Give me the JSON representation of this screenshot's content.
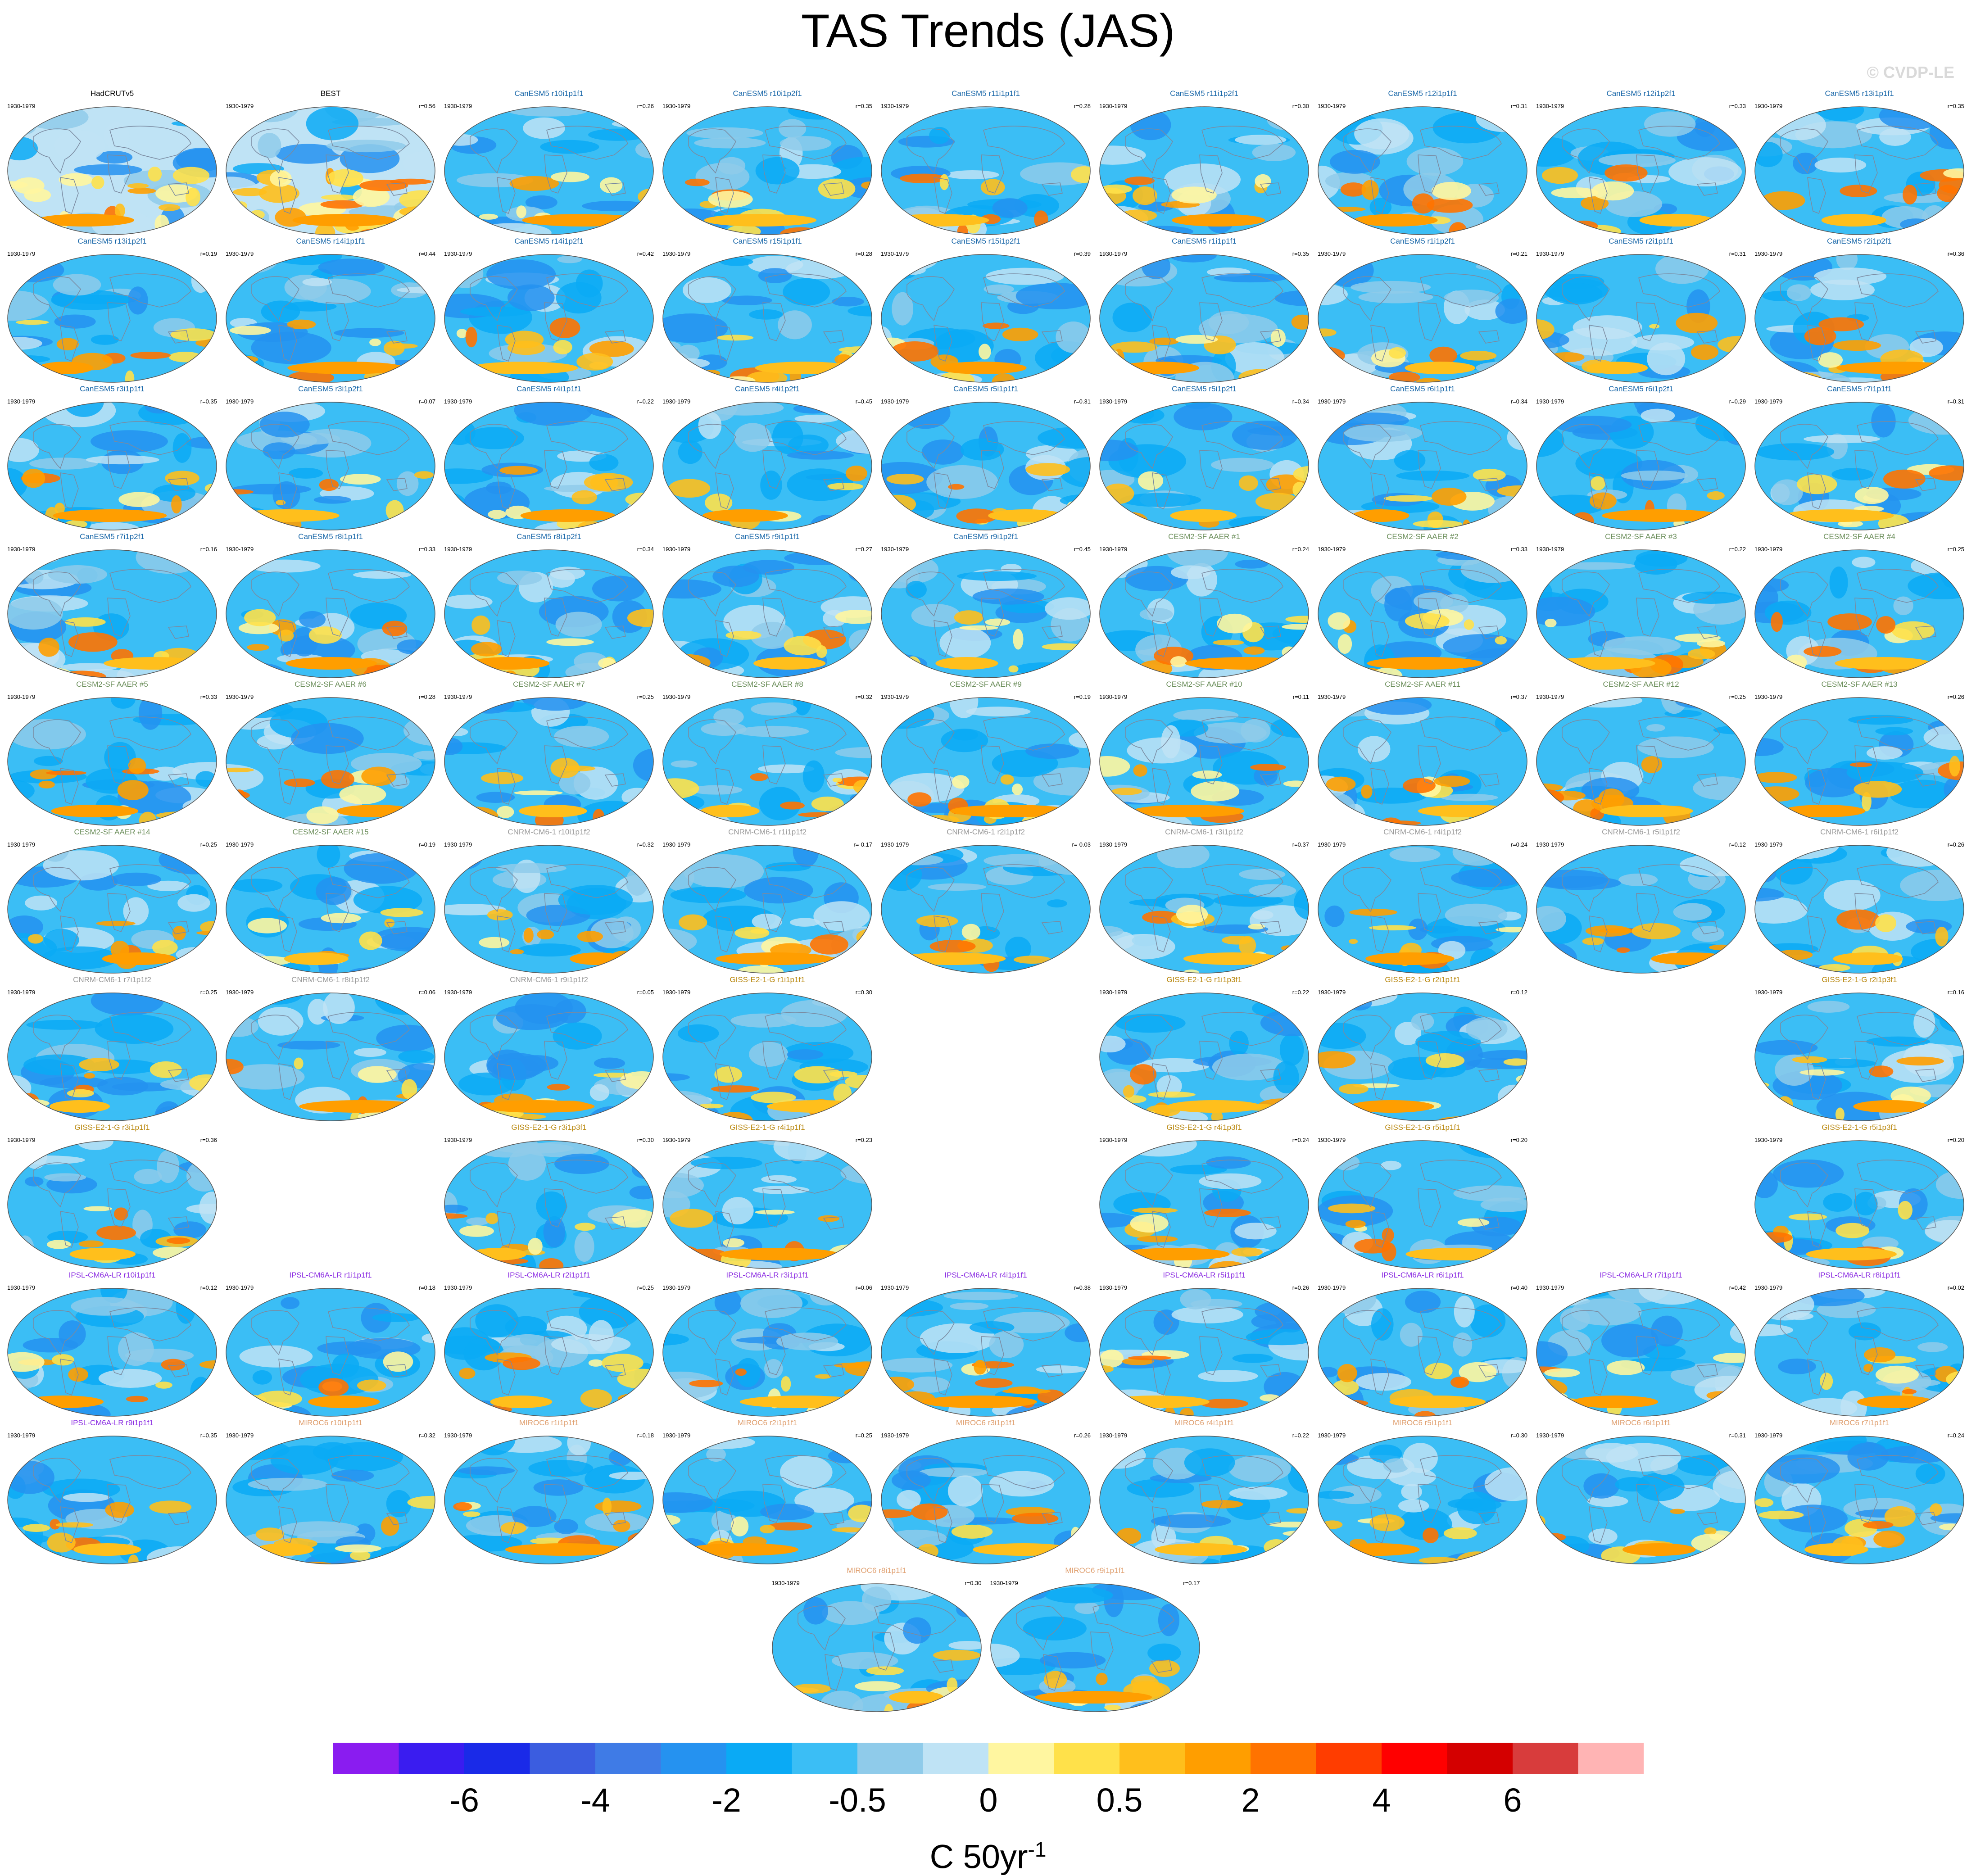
{
  "title": "TAS Trends (JAS)",
  "copyright": "© CVDP-LE",
  "units": {
    "main": "C 50yr",
    "exponent": "-1"
  },
  "colorbar": {
    "colors": [
      "#8a1cf0",
      "#3a1cf0",
      "#1a2ae8",
      "#3b5de0",
      "#3f7be6",
      "#2592f0",
      "#0aaaf5",
      "#3bbef5",
      "#8fcbea",
      "#bfe3f5",
      "#fff6a0",
      "#ffe14a",
      "#ffbf1c",
      "#ff9e00",
      "#ff7300",
      "#ff3d00",
      "#ff0000",
      "#d40000",
      "#d83c3c",
      "#ffb4b4"
    ],
    "tick_labels": [
      "-6",
      "-4",
      "-2",
      "-0.5",
      "0",
      "0.5",
      "2",
      "4",
      "6"
    ]
  },
  "model_colors": {
    "obs": "#000000",
    "CanESM5": "#1766a8",
    "CESM2": "#6b8e5a",
    "CNRM": "#9a9a9a",
    "GISS": "#b8860b",
    "IPSL": "#8a2be2",
    "MIROC6": "#e0a070"
  },
  "panels": [
    {
      "name": "HadCRUTv5",
      "period": "1930-1979",
      "corr": "",
      "group": "obs",
      "row": 0,
      "col": 0
    },
    {
      "name": "BEST",
      "period": "1930-1979",
      "corr": "r=0.56",
      "group": "obs",
      "row": 0,
      "col": 1
    },
    {
      "name": "CanESM5 r10i1p1f1",
      "period": "1930-1979",
      "corr": "r=0.26",
      "group": "CanESM5",
      "row": 0,
      "col": 2
    },
    {
      "name": "CanESM5 r10i1p2f1",
      "period": "1930-1979",
      "corr": "r=0.35",
      "group": "CanESM5",
      "row": 0,
      "col": 3
    },
    {
      "name": "CanESM5 r11i1p1f1",
      "period": "1930-1979",
      "corr": "r=0.28",
      "group": "CanESM5",
      "row": 0,
      "col": 4
    },
    {
      "name": "CanESM5 r11i1p2f1",
      "period": "1930-1979",
      "corr": "r=0.30",
      "group": "CanESM5",
      "row": 0,
      "col": 5
    },
    {
      "name": "CanESM5 r12i1p1f1",
      "period": "1930-1979",
      "corr": "r=0.31",
      "group": "CanESM5",
      "row": 0,
      "col": 6
    },
    {
      "name": "CanESM5 r12i1p2f1",
      "period": "1930-1979",
      "corr": "r=0.33",
      "group": "CanESM5",
      "row": 0,
      "col": 7
    },
    {
      "name": "CanESM5 r13i1p1f1",
      "period": "1930-1979",
      "corr": "r=0.35",
      "group": "CanESM5",
      "row": 0,
      "col": 8
    },
    {
      "name": "CanESM5 r13i1p2f1",
      "period": "1930-1979",
      "corr": "r=0.19",
      "group": "CanESM5",
      "row": 1,
      "col": 0
    },
    {
      "name": "CanESM5 r14i1p1f1",
      "period": "1930-1979",
      "corr": "r=0.44",
      "group": "CanESM5",
      "row": 1,
      "col": 1
    },
    {
      "name": "CanESM5 r14i1p2f1",
      "period": "1930-1979",
      "corr": "r=0.42",
      "group": "CanESM5",
      "row": 1,
      "col": 2
    },
    {
      "name": "CanESM5 r15i1p1f1",
      "period": "1930-1979",
      "corr": "r=0.28",
      "group": "CanESM5",
      "row": 1,
      "col": 3
    },
    {
      "name": "CanESM5 r15i1p2f1",
      "period": "1930-1979",
      "corr": "r=0.39",
      "group": "CanESM5",
      "row": 1,
      "col": 4
    },
    {
      "name": "CanESM5 r1i1p1f1",
      "period": "1930-1979",
      "corr": "r=0.35",
      "group": "CanESM5",
      "row": 1,
      "col": 5
    },
    {
      "name": "CanESM5 r1i1p2f1",
      "period": "1930-1979",
      "corr": "r=0.21",
      "group": "CanESM5",
      "row": 1,
      "col": 6
    },
    {
      "name": "CanESM5 r2i1p1f1",
      "period": "1930-1979",
      "corr": "r=0.31",
      "group": "CanESM5",
      "row": 1,
      "col": 7
    },
    {
      "name": "CanESM5 r2i1p2f1",
      "period": "1930-1979",
      "corr": "r=0.36",
      "group": "CanESM5",
      "row": 1,
      "col": 8
    },
    {
      "name": "CanESM5 r3i1p1f1",
      "period": "1930-1979",
      "corr": "r=0.35",
      "group": "CanESM5",
      "row": 2,
      "col": 0
    },
    {
      "name": "CanESM5 r3i1p2f1",
      "period": "1930-1979",
      "corr": "r=0.07",
      "group": "CanESM5",
      "row": 2,
      "col": 1
    },
    {
      "name": "CanESM5 r4i1p1f1",
      "period": "1930-1979",
      "corr": "r=0.22",
      "group": "CanESM5",
      "row": 2,
      "col": 2
    },
    {
      "name": "CanESM5 r4i1p2f1",
      "period": "1930-1979",
      "corr": "r=0.45",
      "group": "CanESM5",
      "row": 2,
      "col": 3
    },
    {
      "name": "CanESM5 r5i1p1f1",
      "period": "1930-1979",
      "corr": "r=0.31",
      "group": "CanESM5",
      "row": 2,
      "col": 4
    },
    {
      "name": "CanESM5 r5i1p2f1",
      "period": "1930-1979",
      "corr": "r=0.34",
      "group": "CanESM5",
      "row": 2,
      "col": 5
    },
    {
      "name": "CanESM5 r6i1p1f1",
      "period": "1930-1979",
      "corr": "r=0.34",
      "group": "CanESM5",
      "row": 2,
      "col": 6
    },
    {
      "name": "CanESM5 r6i1p2f1",
      "period": "1930-1979",
      "corr": "r=0.29",
      "group": "CanESM5",
      "row": 2,
      "col": 7
    },
    {
      "name": "CanESM5 r7i1p1f1",
      "period": "1930-1979",
      "corr": "r=0.31",
      "group": "CanESM5",
      "row": 2,
      "col": 8
    },
    {
      "name": "CanESM5 r7i1p2f1",
      "period": "1930-1979",
      "corr": "r=0.16",
      "group": "CanESM5",
      "row": 3,
      "col": 0
    },
    {
      "name": "CanESM5 r8i1p1f1",
      "period": "1930-1979",
      "corr": "r=0.33",
      "group": "CanESM5",
      "row": 3,
      "col": 1
    },
    {
      "name": "CanESM5 r8i1p2f1",
      "period": "1930-1979",
      "corr": "r=0.34",
      "group": "CanESM5",
      "row": 3,
      "col": 2
    },
    {
      "name": "CanESM5 r9i1p1f1",
      "period": "1930-1979",
      "corr": "r=0.27",
      "group": "CanESM5",
      "row": 3,
      "col": 3
    },
    {
      "name": "CanESM5 r9i1p2f1",
      "period": "1930-1979",
      "corr": "r=0.45",
      "group": "CanESM5",
      "row": 3,
      "col": 4
    },
    {
      "name": "CESM2-SF AAER #1",
      "period": "1930-1979",
      "corr": "r=0.24",
      "group": "CESM2",
      "row": 3,
      "col": 5
    },
    {
      "name": "CESM2-SF AAER #2",
      "period": "1930-1979",
      "corr": "r=0.33",
      "group": "CESM2",
      "row": 3,
      "col": 6
    },
    {
      "name": "CESM2-SF AAER #3",
      "period": "1930-1979",
      "corr": "r=0.22",
      "group": "CESM2",
      "row": 3,
      "col": 7
    },
    {
      "name": "CESM2-SF AAER #4",
      "period": "1930-1979",
      "corr": "r=0.25",
      "group": "CESM2",
      "row": 3,
      "col": 8
    },
    {
      "name": "CESM2-SF AAER #5",
      "period": "1930-1979",
      "corr": "r=0.33",
      "group": "CESM2",
      "row": 4,
      "col": 0
    },
    {
      "name": "CESM2-SF AAER #6",
      "period": "1930-1979",
      "corr": "r=0.28",
      "group": "CESM2",
      "row": 4,
      "col": 1
    },
    {
      "name": "CESM2-SF AAER #7",
      "period": "1930-1979",
      "corr": "r=0.25",
      "group": "CESM2",
      "row": 4,
      "col": 2
    },
    {
      "name": "CESM2-SF AAER #8",
      "period": "1930-1979",
      "corr": "r=0.32",
      "group": "CESM2",
      "row": 4,
      "col": 3
    },
    {
      "name": "CESM2-SF AAER #9",
      "period": "1930-1979",
      "corr": "r=0.19",
      "group": "CESM2",
      "row": 4,
      "col": 4
    },
    {
      "name": "CESM2-SF AAER #10",
      "period": "1930-1979",
      "corr": "r=0.11",
      "group": "CESM2",
      "row": 4,
      "col": 5
    },
    {
      "name": "CESM2-SF AAER #11",
      "period": "1930-1979",
      "corr": "r=0.37",
      "group": "CESM2",
      "row": 4,
      "col": 6
    },
    {
      "name": "CESM2-SF AAER #12",
      "period": "1930-1979",
      "corr": "r=0.25",
      "group": "CESM2",
      "row": 4,
      "col": 7
    },
    {
      "name": "CESM2-SF AAER #13",
      "period": "1930-1979",
      "corr": "r=0.26",
      "group": "CESM2",
      "row": 4,
      "col": 8
    },
    {
      "name": "CESM2-SF AAER #14",
      "period": "1930-1979",
      "corr": "r=0.25",
      "group": "CESM2",
      "row": 5,
      "col": 0
    },
    {
      "name": "CESM2-SF AAER #15",
      "period": "1930-1979",
      "corr": "r=0.19",
      "group": "CESM2",
      "row": 5,
      "col": 1
    },
    {
      "name": "CNRM-CM6-1 r10i1p1f2",
      "period": "1930-1979",
      "corr": "r=0.32",
      "group": "CNRM",
      "row": 5,
      "col": 2
    },
    {
      "name": "CNRM-CM6-1 r1i1p1f2",
      "period": "1930-1979",
      "corr": "r=-0.17",
      "group": "CNRM",
      "row": 5,
      "col": 3
    },
    {
      "name": "CNRM-CM6-1 r2i1p1f2",
      "period": "1930-1979",
      "corr": "r=-0.03",
      "group": "CNRM",
      "row": 5,
      "col": 4
    },
    {
      "name": "CNRM-CM6-1 r3i1p1f2",
      "period": "1930-1979",
      "corr": "r=0.37",
      "group": "CNRM",
      "row": 5,
      "col": 5
    },
    {
      "name": "CNRM-CM6-1 r4i1p1f2",
      "period": "1930-1979",
      "corr": "r=0.24",
      "group": "CNRM",
      "row": 5,
      "col": 6
    },
    {
      "name": "CNRM-CM6-1 r5i1p1f2",
      "period": "1930-1979",
      "corr": "r=0.12",
      "group": "CNRM",
      "row": 5,
      "col": 7
    },
    {
      "name": "CNRM-CM6-1 r6i1p1f2",
      "period": "1930-1979",
      "corr": "r=0.26",
      "group": "CNRM",
      "row": 5,
      "col": 8
    },
    {
      "name": "CNRM-CM6-1 r7i1p1f2",
      "period": "1930-1979",
      "corr": "r=0.25",
      "group": "CNRM",
      "row": 6,
      "col": 0
    },
    {
      "name": "CNRM-CM6-1 r8i1p1f2",
      "period": "1930-1979",
      "corr": "r=0.06",
      "group": "CNRM",
      "row": 6,
      "col": 1
    },
    {
      "name": "CNRM-CM6-1 r9i1p1f2",
      "period": "1930-1979",
      "corr": "r=0.05",
      "group": "CNRM",
      "row": 6,
      "col": 2
    },
    {
      "name": "GISS-E2-1-G r1i1p1f1",
      "period": "1930-1979",
      "corr": "r=0.30",
      "group": "GISS",
      "row": 6,
      "col": 3
    },
    {
      "name": "GISS-E2-1-G r1i1p3f1",
      "period": "1930-1979",
      "corr": "r=0.22",
      "group": "GISS",
      "row": 6,
      "col": 5
    },
    {
      "name": "GISS-E2-1-G r2i1p1f1",
      "period": "1930-1979",
      "corr": "r=0.12",
      "group": "GISS",
      "row": 6,
      "col": 6
    },
    {
      "name": "GISS-E2-1-G r2i1p3f1",
      "period": "1930-1979",
      "corr": "r=0.16",
      "group": "GISS",
      "row": 6,
      "col": 8
    },
    {
      "name": "GISS-E2-1-G r3i1p1f1",
      "period": "1930-1979",
      "corr": "r=0.36",
      "group": "GISS",
      "row": 7,
      "col": 0
    },
    {
      "name": "GISS-E2-1-G r3i1p3f1",
      "period": "1930-1979",
      "corr": "r=0.30",
      "group": "GISS",
      "row": 7,
      "col": 2
    },
    {
      "name": "GISS-E2-1-G r4i1p1f1",
      "period": "1930-1979",
      "corr": "r=0.23",
      "group": "GISS",
      "row": 7,
      "col": 3
    },
    {
      "name": "GISS-E2-1-G r4i1p3f1",
      "period": "1930-1979",
      "corr": "r=0.24",
      "group": "GISS",
      "row": 7,
      "col": 5
    },
    {
      "name": "GISS-E2-1-G r5i1p1f1",
      "period": "1930-1979",
      "corr": "r=0.20",
      "group": "GISS",
      "row": 7,
      "col": 6
    },
    {
      "name": "GISS-E2-1-G r5i1p3f1",
      "period": "1930-1979",
      "corr": "r=0.20",
      "group": "GISS",
      "row": 7,
      "col": 8
    },
    {
      "name": "IPSL-CM6A-LR r10i1p1f1",
      "period": "1930-1979",
      "corr": "r=0.12",
      "group": "IPSL",
      "row": 8,
      "col": 0
    },
    {
      "name": "IPSL-CM6A-LR r1i1p1f1",
      "period": "1930-1979",
      "corr": "r=0.18",
      "group": "IPSL",
      "row": 8,
      "col": 1
    },
    {
      "name": "IPSL-CM6A-LR r2i1p1f1",
      "period": "1930-1979",
      "corr": "r=0.25",
      "group": "IPSL",
      "row": 8,
      "col": 2
    },
    {
      "name": "IPSL-CM6A-LR r3i1p1f1",
      "period": "1930-1979",
      "corr": "r=0.06",
      "group": "IPSL",
      "row": 8,
      "col": 3
    },
    {
      "name": "IPSL-CM6A-LR r4i1p1f1",
      "period": "1930-1979",
      "corr": "r=0.38",
      "group": "IPSL",
      "row": 8,
      "col": 4
    },
    {
      "name": "IPSL-CM6A-LR r5i1p1f1",
      "period": "1930-1979",
      "corr": "r=0.26",
      "group": "IPSL",
      "row": 8,
      "col": 5
    },
    {
      "name": "IPSL-CM6A-LR r6i1p1f1",
      "period": "1930-1979",
      "corr": "r=0.40",
      "group": "IPSL",
      "row": 8,
      "col": 6
    },
    {
      "name": "IPSL-CM6A-LR r7i1p1f1",
      "period": "1930-1979",
      "corr": "r=0.42",
      "group": "IPSL",
      "row": 8,
      "col": 7
    },
    {
      "name": "IPSL-CM6A-LR r8i1p1f1",
      "period": "1930-1979",
      "corr": "r=0.02",
      "group": "IPSL",
      "row": 8,
      "col": 8
    },
    {
      "name": "IPSL-CM6A-LR r9i1p1f1",
      "period": "1930-1979",
      "corr": "r=0.35",
      "group": "IPSL",
      "row": 9,
      "col": 0
    },
    {
      "name": "MIROC6 r10i1p1f1",
      "period": "1930-1979",
      "corr": "r=0.32",
      "group": "MIROC6",
      "row": 9,
      "col": 1
    },
    {
      "name": "MIROC6 r1i1p1f1",
      "period": "1930-1979",
      "corr": "r=0.18",
      "group": "MIROC6",
      "row": 9,
      "col": 2
    },
    {
      "name": "MIROC6 r2i1p1f1",
      "period": "1930-1979",
      "corr": "r=0.25",
      "group": "MIROC6",
      "row": 9,
      "col": 3
    },
    {
      "name": "MIROC6 r3i1p1f1",
      "period": "1930-1979",
      "corr": "r=0.26",
      "group": "MIROC6",
      "row": 9,
      "col": 4
    },
    {
      "name": "MIROC6 r4i1p1f1",
      "period": "1930-1979",
      "corr": "r=0.22",
      "group": "MIROC6",
      "row": 9,
      "col": 5
    },
    {
      "name": "MIROC6 r5i1p1f1",
      "period": "1930-1979",
      "corr": "r=0.30",
      "group": "MIROC6",
      "row": 9,
      "col": 6
    },
    {
      "name": "MIROC6 r6i1p1f1",
      "period": "1930-1979",
      "corr": "r=0.31",
      "group": "MIROC6",
      "row": 9,
      "col": 7
    },
    {
      "name": "MIROC6 r7i1p1f1",
      "period": "1930-1979",
      "corr": "r=0.24",
      "group": "MIROC6",
      "row": 9,
      "col": 8
    },
    {
      "name": "MIROC6 r8i1p1f1",
      "period": "1930-1979",
      "corr": "r=0.30",
      "group": "MIROC6",
      "row": 10,
      "col": 3.5
    },
    {
      "name": "MIROC6 r9i1p1f1",
      "period": "1930-1979",
      "corr": "r=0.17",
      "group": "MIROC6",
      "row": 10,
      "col": 4.5
    }
  ]
}
